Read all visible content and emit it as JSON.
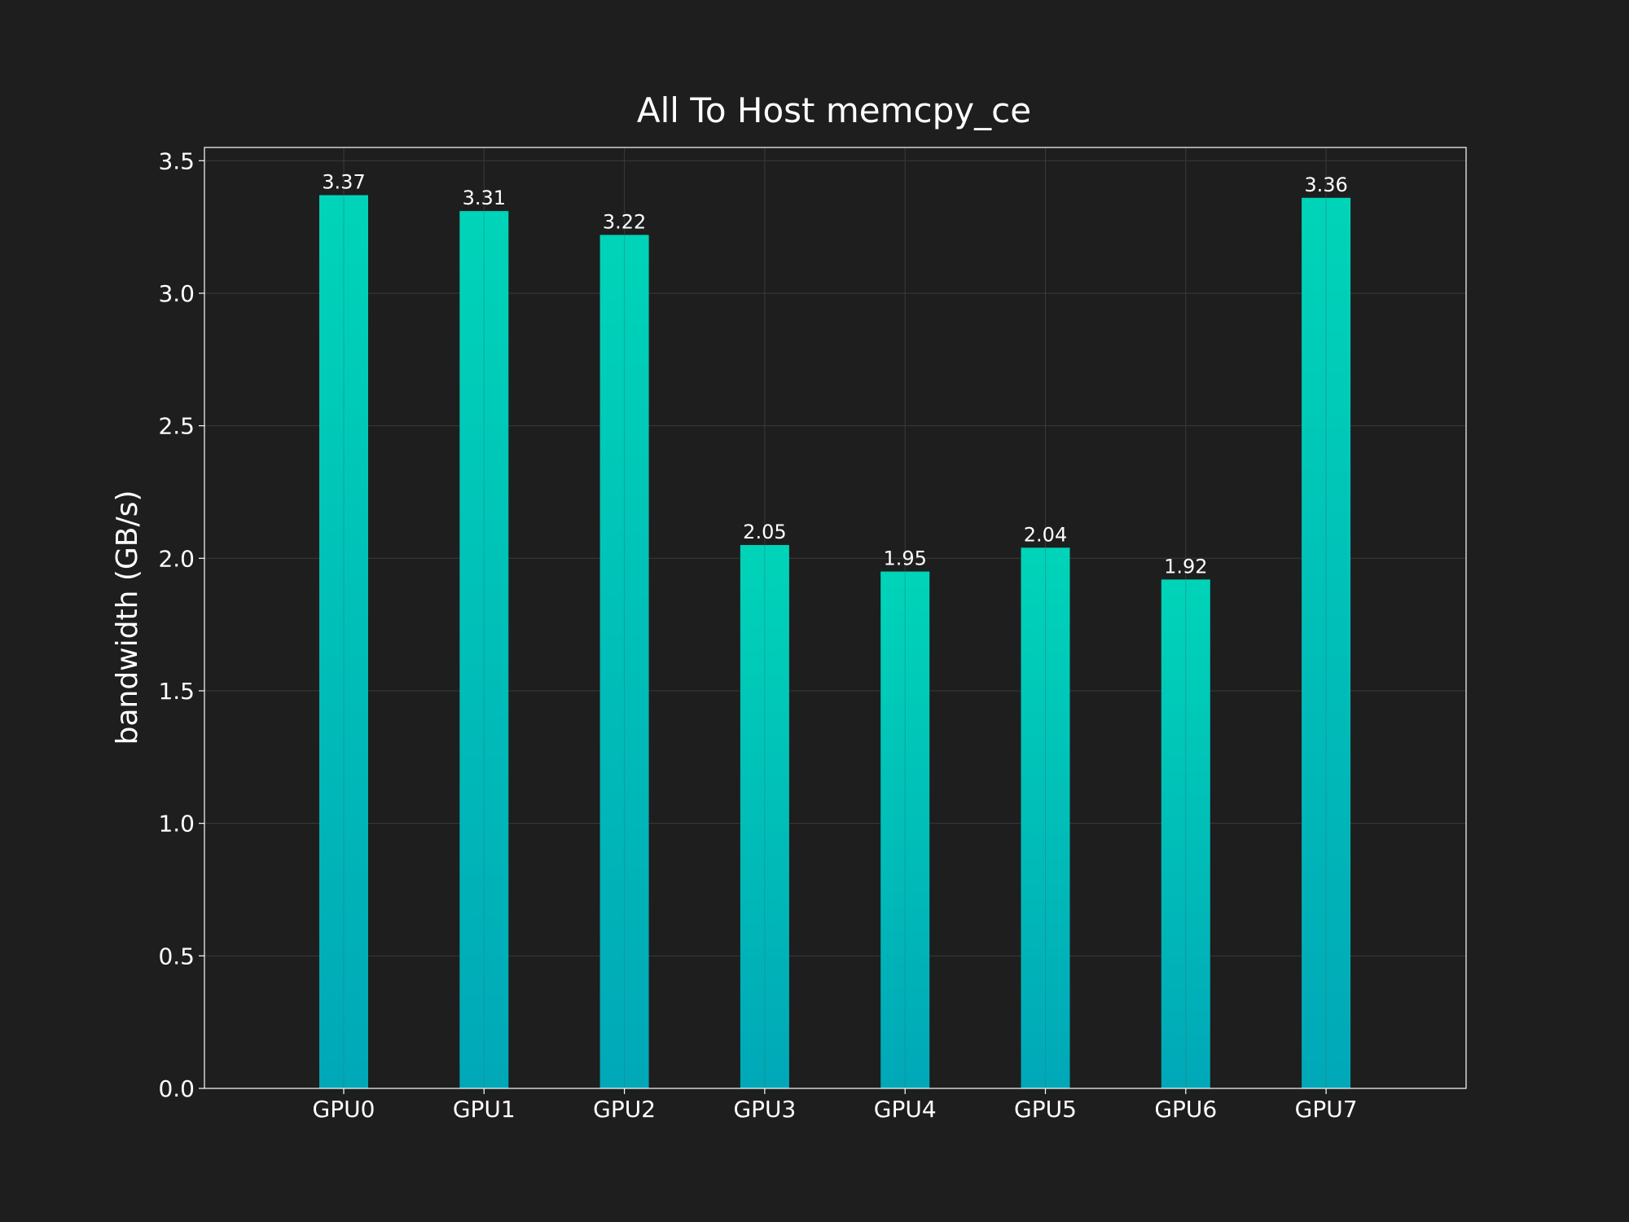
{
  "chart_data": {
    "type": "bar",
    "title": "All To Host memcpy_ce",
    "xlabel": "",
    "ylabel": "bandwidth (GB/s)",
    "categories": [
      "GPU0",
      "GPU1",
      "GPU2",
      "GPU3",
      "GPU4",
      "GPU5",
      "GPU6",
      "GPU7"
    ],
    "values": [
      3.37,
      3.31,
      3.22,
      2.05,
      1.95,
      2.04,
      1.92,
      3.36
    ],
    "value_labels": [
      "3.37",
      "3.31",
      "3.22",
      "2.05",
      "1.95",
      "2.04",
      "1.92",
      "3.36"
    ],
    "ylim": [
      0,
      3.55
    ],
    "yticks": [
      0.0,
      0.5,
      1.0,
      1.5,
      2.0,
      2.5,
      3.0,
      3.5
    ],
    "ytick_labels": [
      "0.0",
      "0.5",
      "1.0",
      "1.5",
      "2.0",
      "2.5",
      "3.0",
      "3.5"
    ],
    "grid": true,
    "colors": {
      "background": "#1e1e1e",
      "bar_top": "#00d4b8",
      "bar_bottom": "#00a8b8",
      "grid": "#3a3a3a",
      "axes": "#ffffff",
      "text": "#ffffff"
    }
  }
}
